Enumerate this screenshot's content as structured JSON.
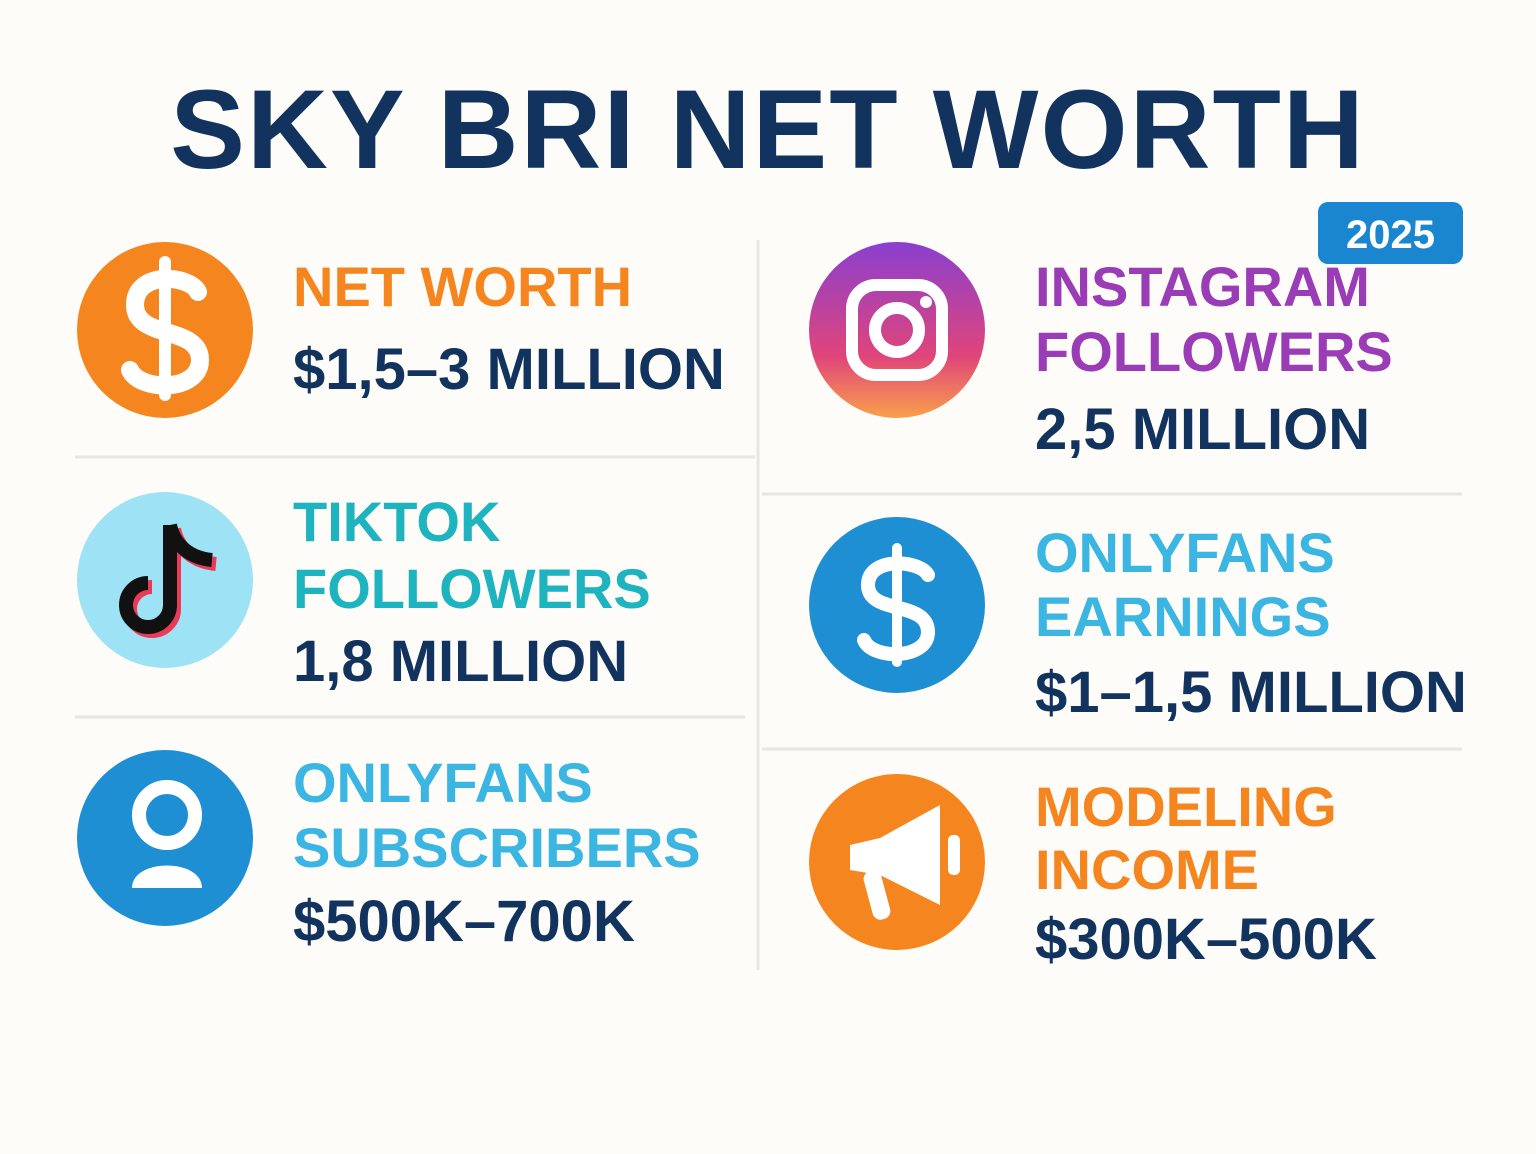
{
  "title": "SKY BRI NET WORTH",
  "badge": "2025",
  "items": [
    {
      "label": [
        "NET WORTH"
      ],
      "value": "$1,5–3 MILLION"
    },
    {
      "label": [
        "TIKTOK",
        "FOLLOWERS"
      ],
      "value": "1,8 MILLION"
    },
    {
      "label": [
        "ONLYFANS",
        "SUBSCRIBERS"
      ],
      "value": "$500K–700K"
    },
    {
      "label": [
        "INSTAGRAM",
        "FOLLOWERS"
      ],
      "value": "2,5 MILLION"
    },
    {
      "label": [
        "ONLYFANS",
        "EARNINGS"
      ],
      "value": "$1–1,5 MILLION"
    },
    {
      "label": [
        "MODELING",
        "INCOME"
      ],
      "value": "$300K–500K"
    }
  ]
}
